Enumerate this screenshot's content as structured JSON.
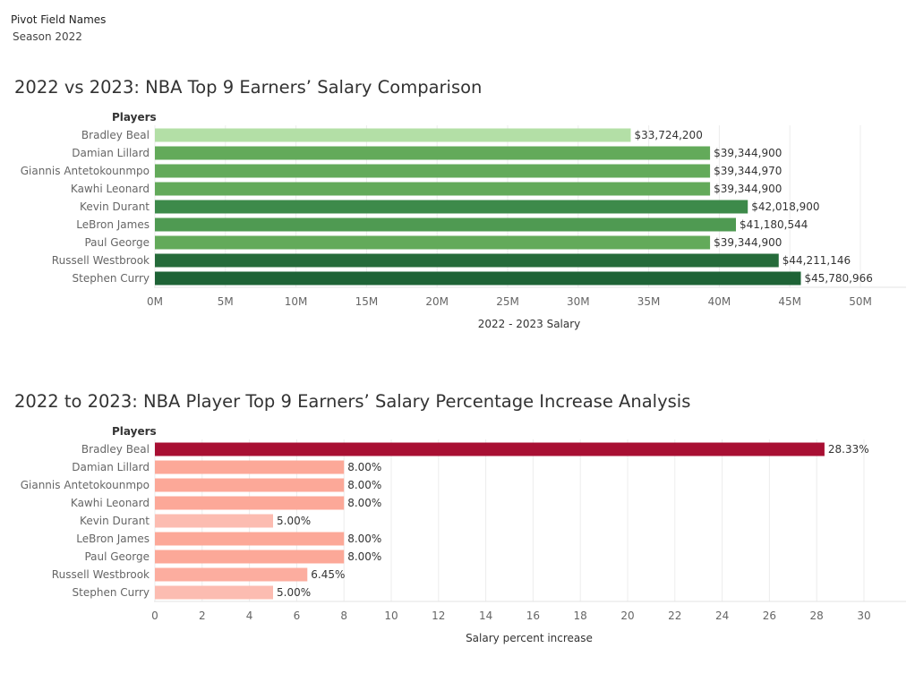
{
  "filter": {
    "title": "Pivot Field Names",
    "value": "Season 2022"
  },
  "charts": [
    {
      "title": "2022 vs 2023: NBA Top 9 Earners’ Salary Comparison",
      "row_header": "Players",
      "axis_title": "2022 - 2023 Salary"
    },
    {
      "title": "2022 to 2023: NBA Player Top 9 Earners’ Salary Percentage Increase Analysis",
      "row_header": "Players",
      "axis_title": "Salary percent increase"
    }
  ],
  "chart_data": [
    {
      "type": "bar",
      "orientation": "horizontal",
      "title": "2022 vs 2023: NBA Top 9 Earners’ Salary Comparison",
      "ylabel": "Players",
      "xlabel": "2022 - 2023 Salary",
      "categories": [
        "Bradley Beal",
        "Damian Lillard",
        "Giannis Antetokounmpo",
        "Kawhi Leonard",
        "Kevin Durant",
        "LeBron James",
        "Paul George",
        "Russell Westbrook",
        "Stephen Curry"
      ],
      "values": [
        33724200,
        39344900,
        39344970,
        39344900,
        42018900,
        41180544,
        39344900,
        44211146,
        45780966
      ],
      "labels": [
        "$33,724,200",
        "$39,344,900",
        "$39,344,970",
        "$39,344,900",
        "$42,018,900",
        "$41,180,544",
        "$39,344,900",
        "$44,211,146",
        "$45,780,966"
      ],
      "colors": [
        "#b3dfa6",
        "#63aa5a",
        "#63aa5a",
        "#63aa5a",
        "#3d8a4a",
        "#4f9a52",
        "#63aa5a",
        "#256b3a",
        "#1e6336"
      ],
      "xlim": [
        0,
        50000000
      ],
      "ticks": [
        0,
        5000000,
        10000000,
        15000000,
        20000000,
        25000000,
        30000000,
        35000000,
        40000000,
        45000000,
        50000000
      ],
      "tick_labels": [
        "0M",
        "5M",
        "10M",
        "15M",
        "20M",
        "25M",
        "30M",
        "35M",
        "40M",
        "45M",
        "50M"
      ],
      "grid": true
    },
    {
      "type": "bar",
      "orientation": "horizontal",
      "title": "2022 to 2023: NBA Player Top 9 Earners’ Salary Percentage Increase Analysis",
      "ylabel": "Players",
      "xlabel": "Salary percent increase",
      "categories": [
        "Bradley Beal",
        "Damian Lillard",
        "Giannis Antetokounmpo",
        "Kawhi Leonard",
        "Kevin Durant",
        "LeBron James",
        "Paul George",
        "Russell Westbrook",
        "Stephen Curry"
      ],
      "values": [
        28.33,
        8.0,
        8.0,
        8.0,
        5.0,
        8.0,
        8.0,
        6.45,
        5.0
      ],
      "labels": [
        "28.33%",
        "8.00%",
        "8.00%",
        "8.00%",
        "5.00%",
        "8.00%",
        "8.00%",
        "6.45%",
        "5.00%"
      ],
      "colors": [
        "#a80f33",
        "#fca898",
        "#fca898",
        "#fca898",
        "#fcbcb1",
        "#fca898",
        "#fca898",
        "#fcad9f",
        "#fcbcb1"
      ],
      "xlim": [
        0,
        30
      ],
      "ticks": [
        0,
        2,
        4,
        6,
        8,
        10,
        12,
        14,
        16,
        18,
        20,
        22,
        24,
        26,
        28,
        30
      ],
      "tick_labels": [
        "0",
        "2",
        "4",
        "6",
        "8",
        "10",
        "12",
        "14",
        "16",
        "18",
        "20",
        "22",
        "24",
        "26",
        "28",
        "30"
      ],
      "grid": true
    }
  ]
}
